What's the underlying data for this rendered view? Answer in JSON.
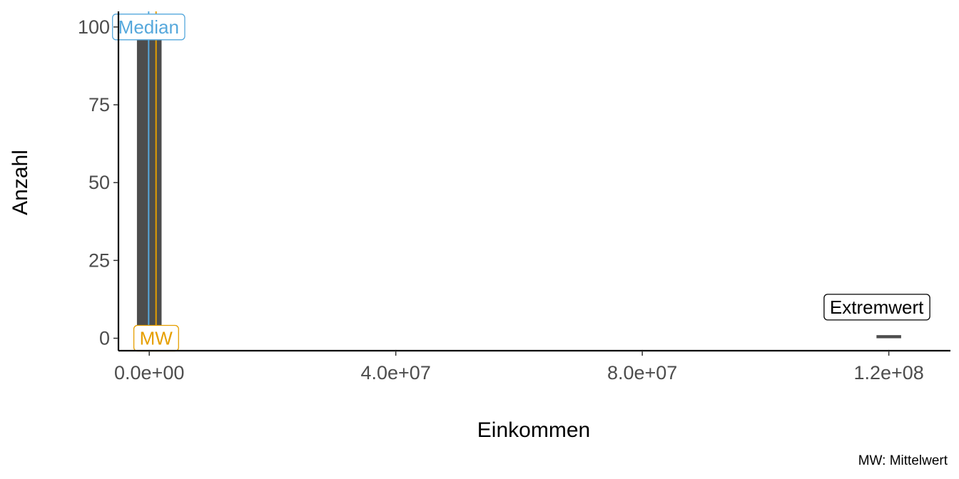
{
  "chart_data": {
    "type": "bar",
    "subtype": "histogram",
    "xlabel": "Einkommen",
    "ylabel": "Anzahl",
    "caption": "MW: Mittelwert",
    "xlim": [
      -5000000,
      130000000
    ],
    "ylim": [
      -4,
      105
    ],
    "x_ticks": [
      0,
      40000000,
      80000000,
      120000000
    ],
    "x_tick_labels": [
      "0.0e+00",
      "4.0e+07",
      "8.0e+07",
      "1.2e+08"
    ],
    "y_ticks": [
      0,
      25,
      50,
      75,
      100
    ],
    "y_tick_labels": [
      "0",
      "25",
      "50",
      "75",
      "100"
    ],
    "bins": [
      {
        "x_start": -2000000,
        "x_end": 2000000,
        "count": 104
      },
      {
        "x_start": 118000000,
        "x_end": 122000000,
        "count": 1
      }
    ],
    "bar_color": "#4d4d4d",
    "median": {
      "value": -100000,
      "label": "Median",
      "color": "#56a8dc"
    },
    "mean": {
      "value": 1100000,
      "label": "MW",
      "color": "#e69f00"
    },
    "outlier_annotation": {
      "x": 120000000,
      "y": 10,
      "label": "Extremwert",
      "color": "#000000"
    },
    "grid": false,
    "legend": "none"
  }
}
